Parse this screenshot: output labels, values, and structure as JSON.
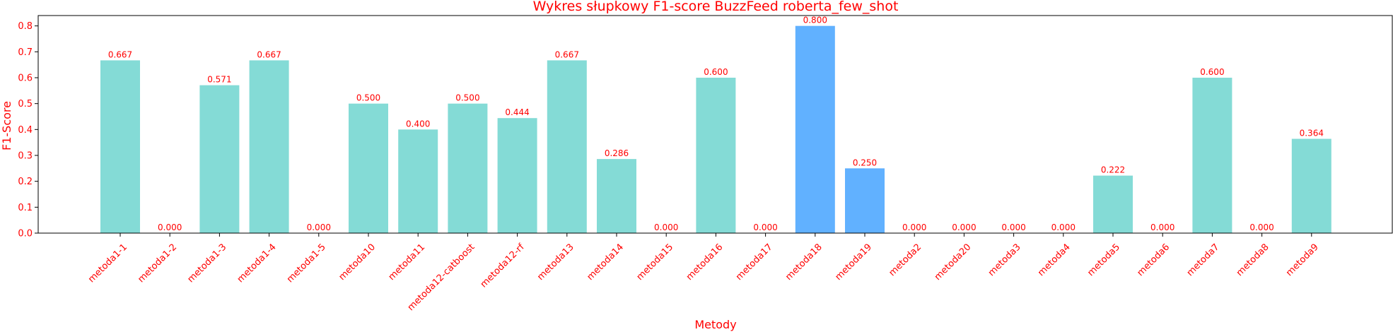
{
  "chart_data": {
    "type": "bar",
    "title": "Wykres słupkowy F1-score BuzzFeed roberta_few_shot",
    "xlabel": "Metody",
    "ylabel": "F1-Score",
    "ylim": [
      0,
      0.84
    ],
    "yticks": [
      "0.0",
      "0.1",
      "0.2",
      "0.3",
      "0.4",
      "0.5",
      "0.6",
      "0.7",
      "0.8"
    ],
    "grid": false,
    "categories": [
      "metoda1-1",
      "metoda1-2",
      "metoda1-3",
      "metoda1-4",
      "metoda1-5",
      "metoda10",
      "metoda11",
      "metoda12-catboost",
      "metoda12-rf",
      "metoda13",
      "metoda14",
      "metoda15",
      "metoda16",
      "metoda17",
      "metoda18",
      "metoda19",
      "metoda2",
      "metoda20",
      "metoda3",
      "metoda4",
      "metoda5",
      "metoda6",
      "metoda7",
      "metoda8",
      "metoda9"
    ],
    "values": [
      0.667,
      0.0,
      0.571,
      0.667,
      0.0,
      0.5,
      0.4,
      0.5,
      0.444,
      0.667,
      0.286,
      0.0,
      0.6,
      0.0,
      0.8,
      0.25,
      0.0,
      0.0,
      0.0,
      0.0,
      0.222,
      0.0,
      0.6,
      0.0,
      0.364
    ],
    "value_labels": [
      "0.667",
      "0.000",
      "0.571",
      "0.667",
      "0.000",
      "0.500",
      "0.400",
      "0.500",
      "0.444",
      "0.667",
      "0.286",
      "0.000",
      "0.600",
      "0.000",
      "0.800",
      "0.250",
      "0.000",
      "0.000",
      "0.000",
      "0.000",
      "0.222",
      "0.000",
      "0.600",
      "0.000",
      "0.364"
    ],
    "highlighted": [
      "metoda18",
      "metoda19"
    ],
    "colors": {
      "bar": "#84dbd6",
      "highlight": "#61b1ff",
      "text": "#ff0000",
      "axis": "#000000"
    }
  }
}
